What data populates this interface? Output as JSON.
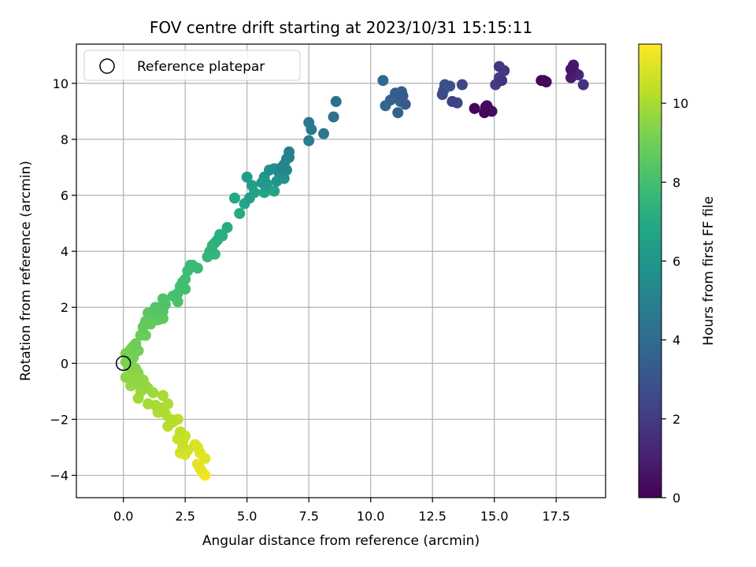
{
  "chart_data": {
    "type": "scatter",
    "title": "FOV centre drift starting at 2023/10/31 15:15:11",
    "xlabel": "Angular distance from reference (arcmin)",
    "ylabel": "Rotation from reference (arcmin)",
    "xlim": [
      -1.9,
      19.5
    ],
    "ylim": [
      -4.8,
      11.4
    ],
    "xticks": [
      0.0,
      2.5,
      5.0,
      7.5,
      10.0,
      12.5,
      15.0,
      17.5
    ],
    "xtick_labels": [
      "0.0",
      "2.5",
      "5.0",
      "7.5",
      "10.0",
      "12.5",
      "15.0",
      "17.5"
    ],
    "yticks": [
      -4,
      -2,
      0,
      2,
      4,
      6,
      8,
      10
    ],
    "ytick_labels": [
      "−4",
      "−2",
      "0",
      "2",
      "4",
      "6",
      "8",
      "10"
    ],
    "grid": true,
    "legend": {
      "position": "top-left",
      "entries": [
        "Reference platepar"
      ]
    },
    "reference_point": {
      "x": 0,
      "y": 0
    },
    "colorbar": {
      "label": "Hours from first FF file",
      "colormap": "viridis",
      "range": [
        0,
        11.5
      ],
      "ticks": [
        0,
        2,
        4,
        6,
        8,
        10
      ],
      "tick_labels": [
        "0",
        "2",
        "4",
        "6",
        "8",
        "10"
      ]
    },
    "series": [
      {
        "points": [
          {
            "x": 14.2,
            "y": 9.1,
            "t": 0.1
          },
          {
            "x": 14.6,
            "y": 8.95,
            "t": 0.2
          },
          {
            "x": 14.7,
            "y": 9.2,
            "t": 0.3
          },
          {
            "x": 14.9,
            "y": 9.0,
            "t": 0.4
          },
          {
            "x": 14.65,
            "y": 9.15,
            "t": 0.5
          },
          {
            "x": 14.8,
            "y": 9.05,
            "t": 0.6
          },
          {
            "x": 16.9,
            "y": 10.1,
            "t": 0.15
          },
          {
            "x": 17.1,
            "y": 10.05,
            "t": 0.25
          },
          {
            "x": 17.0,
            "y": 10.1,
            "t": 0.35
          },
          {
            "x": 18.1,
            "y": 10.5,
            "t": 0.7
          },
          {
            "x": 18.2,
            "y": 10.65,
            "t": 0.8
          },
          {
            "x": 18.1,
            "y": 10.2,
            "t": 0.9
          },
          {
            "x": 18.4,
            "y": 10.3,
            "t": 1.3
          },
          {
            "x": 18.6,
            "y": 9.95,
            "t": 1.6
          },
          {
            "x": 18.25,
            "y": 10.4,
            "t": 1.1
          },
          {
            "x": 15.2,
            "y": 10.6,
            "t": 1.8
          },
          {
            "x": 15.4,
            "y": 10.45,
            "t": 1.9
          },
          {
            "x": 15.2,
            "y": 10.2,
            "t": 2.0
          },
          {
            "x": 15.05,
            "y": 9.95,
            "t": 2.1
          },
          {
            "x": 15.3,
            "y": 10.1,
            "t": 1.7
          },
          {
            "x": 13.3,
            "y": 9.35,
            "t": 2.2
          },
          {
            "x": 13.5,
            "y": 9.3,
            "t": 2.3
          },
          {
            "x": 13.7,
            "y": 9.95,
            "t": 2.4
          },
          {
            "x": 12.9,
            "y": 9.6,
            "t": 2.6
          },
          {
            "x": 13.0,
            "y": 9.95,
            "t": 2.8
          },
          {
            "x": 13.2,
            "y": 9.9,
            "t": 3.0
          },
          {
            "x": 12.95,
            "y": 9.75,
            "t": 2.9
          },
          {
            "x": 11.3,
            "y": 9.55,
            "t": 3.2
          },
          {
            "x": 11.4,
            "y": 9.25,
            "t": 3.3
          },
          {
            "x": 11.0,
            "y": 9.65,
            "t": 3.4
          },
          {
            "x": 11.1,
            "y": 8.95,
            "t": 3.5
          },
          {
            "x": 11.2,
            "y": 9.35,
            "t": 3.6
          },
          {
            "x": 10.8,
            "y": 9.4,
            "t": 3.7
          },
          {
            "x": 10.6,
            "y": 9.2,
            "t": 3.8
          },
          {
            "x": 10.5,
            "y": 10.1,
            "t": 3.9
          },
          {
            "x": 11.25,
            "y": 9.7,
            "t": 3.45
          },
          {
            "x": 8.6,
            "y": 9.35,
            "t": 4.2
          },
          {
            "x": 8.5,
            "y": 8.8,
            "t": 4.3
          },
          {
            "x": 8.1,
            "y": 8.2,
            "t": 4.5
          },
          {
            "x": 7.6,
            "y": 8.35,
            "t": 4.6
          },
          {
            "x": 7.5,
            "y": 8.6,
            "t": 4.7
          },
          {
            "x": 7.5,
            "y": 7.95,
            "t": 4.8
          },
          {
            "x": 6.7,
            "y": 7.55,
            "t": 5.0
          },
          {
            "x": 6.6,
            "y": 7.3,
            "t": 5.1
          },
          {
            "x": 6.5,
            "y": 7.1,
            "t": 5.2
          },
          {
            "x": 6.4,
            "y": 7.0,
            "t": 5.3
          },
          {
            "x": 6.7,
            "y": 7.35,
            "t": 5.15
          },
          {
            "x": 6.6,
            "y": 6.9,
            "t": 5.4
          },
          {
            "x": 6.3,
            "y": 6.8,
            "t": 5.5
          },
          {
            "x": 6.1,
            "y": 6.95,
            "t": 5.6
          },
          {
            "x": 5.9,
            "y": 6.9,
            "t": 5.7
          },
          {
            "x": 6.5,
            "y": 6.6,
            "t": 5.8
          },
          {
            "x": 6.2,
            "y": 6.5,
            "t": 5.9
          },
          {
            "x": 5.7,
            "y": 6.65,
            "t": 6.0
          },
          {
            "x": 5.6,
            "y": 6.45,
            "t": 6.1
          },
          {
            "x": 5.8,
            "y": 6.4,
            "t": 6.2
          },
          {
            "x": 5.0,
            "y": 6.65,
            "t": 6.3
          },
          {
            "x": 5.2,
            "y": 6.35,
            "t": 6.4
          },
          {
            "x": 5.1,
            "y": 5.9,
            "t": 6.5
          },
          {
            "x": 5.7,
            "y": 6.1,
            "t": 6.6
          },
          {
            "x": 6.1,
            "y": 6.15,
            "t": 6.7
          },
          {
            "x": 4.9,
            "y": 5.7,
            "t": 6.8
          },
          {
            "x": 4.5,
            "y": 5.9,
            "t": 6.9
          },
          {
            "x": 4.7,
            "y": 5.35,
            "t": 7.0
          },
          {
            "x": 5.3,
            "y": 6.1,
            "t": 6.55
          },
          {
            "x": 4.2,
            "y": 4.85,
            "t": 7.1
          },
          {
            "x": 3.9,
            "y": 4.6,
            "t": 7.2
          },
          {
            "x": 3.8,
            "y": 4.4,
            "t": 7.3
          },
          {
            "x": 4.0,
            "y": 4.55,
            "t": 7.25
          },
          {
            "x": 3.6,
            "y": 4.2,
            "t": 7.4
          },
          {
            "x": 3.7,
            "y": 4.3,
            "t": 7.45
          },
          {
            "x": 3.5,
            "y": 4.0,
            "t": 7.5
          },
          {
            "x": 3.7,
            "y": 3.9,
            "t": 7.55
          },
          {
            "x": 3.4,
            "y": 3.8,
            "t": 7.6
          },
          {
            "x": 3.0,
            "y": 3.4,
            "t": 7.7
          },
          {
            "x": 2.8,
            "y": 3.5,
            "t": 7.75
          },
          {
            "x": 2.6,
            "y": 3.3,
            "t": 7.8
          },
          {
            "x": 2.7,
            "y": 3.5,
            "t": 7.85
          },
          {
            "x": 2.5,
            "y": 3.0,
            "t": 7.9
          },
          {
            "x": 2.4,
            "y": 2.9,
            "t": 7.95
          },
          {
            "x": 2.5,
            "y": 2.65,
            "t": 8.0
          },
          {
            "x": 2.2,
            "y": 2.5,
            "t": 8.05
          },
          {
            "x": 2.3,
            "y": 2.75,
            "t": 8.1
          },
          {
            "x": 2.0,
            "y": 2.4,
            "t": 8.15
          },
          {
            "x": 2.2,
            "y": 2.2,
            "t": 8.2
          },
          {
            "x": 1.6,
            "y": 2.3,
            "t": 8.25
          },
          {
            "x": 1.7,
            "y": 2.1,
            "t": 8.3
          },
          {
            "x": 1.5,
            "y": 2.0,
            "t": 8.35
          },
          {
            "x": 1.3,
            "y": 2.0,
            "t": 8.4
          },
          {
            "x": 1.6,
            "y": 1.85,
            "t": 8.45
          },
          {
            "x": 1.2,
            "y": 1.75,
            "t": 8.5
          },
          {
            "x": 1.0,
            "y": 1.8,
            "t": 8.55
          },
          {
            "x": 1.6,
            "y": 1.6,
            "t": 8.6
          },
          {
            "x": 1.4,
            "y": 1.55,
            "t": 8.65
          },
          {
            "x": 0.9,
            "y": 1.5,
            "t": 8.7
          },
          {
            "x": 0.8,
            "y": 1.3,
            "t": 8.75
          },
          {
            "x": 1.1,
            "y": 1.4,
            "t": 8.8
          },
          {
            "x": 0.7,
            "y": 1.0,
            "t": 8.85
          },
          {
            "x": 0.9,
            "y": 1.0,
            "t": 8.9
          },
          {
            "x": 0.5,
            "y": 0.7,
            "t": 8.95
          },
          {
            "x": 0.4,
            "y": 0.6,
            "t": 9.0
          },
          {
            "x": 0.6,
            "y": 0.45,
            "t": 9.0
          },
          {
            "x": 0.3,
            "y": 0.5,
            "t": 9.05
          },
          {
            "x": 0.2,
            "y": 0.3,
            "t": 9.1
          },
          {
            "x": 0.1,
            "y": 0.35,
            "t": 9.15
          },
          {
            "x": 0.4,
            "y": 0.2,
            "t": 9.2
          },
          {
            "x": 0.3,
            "y": 0.0,
            "t": 9.25
          },
          {
            "x": 0.1,
            "y": 0.05,
            "t": 9.3
          },
          {
            "x": 0.2,
            "y": -0.1,
            "t": 9.35
          },
          {
            "x": 0.5,
            "y": -0.2,
            "t": 9.4
          },
          {
            "x": 0.6,
            "y": -0.35,
            "t": 9.45
          },
          {
            "x": 0.3,
            "y": -0.3,
            "t": 9.5
          },
          {
            "x": 0.1,
            "y": -0.5,
            "t": 9.55
          },
          {
            "x": 0.4,
            "y": -0.6,
            "t": 9.6
          },
          {
            "x": 0.6,
            "y": -0.75,
            "t": 9.6
          },
          {
            "x": 0.8,
            "y": -0.6,
            "t": 9.65
          },
          {
            "x": 0.3,
            "y": -0.8,
            "t": 9.7
          },
          {
            "x": 0.9,
            "y": -0.8,
            "t": 9.7
          },
          {
            "x": 1.0,
            "y": -0.9,
            "t": 9.75
          },
          {
            "x": 0.7,
            "y": -1.0,
            "t": 9.8
          },
          {
            "x": 1.2,
            "y": -1.05,
            "t": 9.85
          },
          {
            "x": 0.6,
            "y": -1.25,
            "t": 9.85
          },
          {
            "x": 1.0,
            "y": -1.45,
            "t": 9.9
          },
          {
            "x": 1.3,
            "y": -1.5,
            "t": 9.95
          },
          {
            "x": 1.6,
            "y": -1.15,
            "t": 10.0
          },
          {
            "x": 1.5,
            "y": -1.6,
            "t": 10.05
          },
          {
            "x": 1.4,
            "y": -1.75,
            "t": 10.1
          },
          {
            "x": 1.8,
            "y": -1.45,
            "t": 10.1
          },
          {
            "x": 1.7,
            "y": -1.8,
            "t": 10.15
          },
          {
            "x": 1.9,
            "y": -2.0,
            "t": 10.2
          },
          {
            "x": 1.8,
            "y": -2.25,
            "t": 10.25
          },
          {
            "x": 2.0,
            "y": -2.1,
            "t": 10.3
          },
          {
            "x": 2.2,
            "y": -2.0,
            "t": 10.35
          },
          {
            "x": 2.3,
            "y": -2.45,
            "t": 10.4
          },
          {
            "x": 2.2,
            "y": -2.7,
            "t": 10.5
          },
          {
            "x": 2.4,
            "y": -2.8,
            "t": 10.55
          },
          {
            "x": 2.5,
            "y": -2.6,
            "t": 10.6
          },
          {
            "x": 2.4,
            "y": -3.0,
            "t": 10.65
          },
          {
            "x": 2.6,
            "y": -3.1,
            "t": 10.7
          },
          {
            "x": 2.3,
            "y": -3.2,
            "t": 10.75
          },
          {
            "x": 2.5,
            "y": -3.25,
            "t": 10.8
          },
          {
            "x": 2.9,
            "y": -2.9,
            "t": 10.85
          },
          {
            "x": 3.0,
            "y": -3.0,
            "t": 10.9
          },
          {
            "x": 3.1,
            "y": -3.2,
            "t": 10.95
          },
          {
            "x": 3.3,
            "y": -3.4,
            "t": 11.0
          },
          {
            "x": 3.0,
            "y": -3.6,
            "t": 11.05
          },
          {
            "x": 3.1,
            "y": -3.75,
            "t": 11.1
          },
          {
            "x": 3.2,
            "y": -3.9,
            "t": 11.2
          },
          {
            "x": 3.3,
            "y": -4.0,
            "t": 11.35
          }
        ]
      }
    ]
  }
}
